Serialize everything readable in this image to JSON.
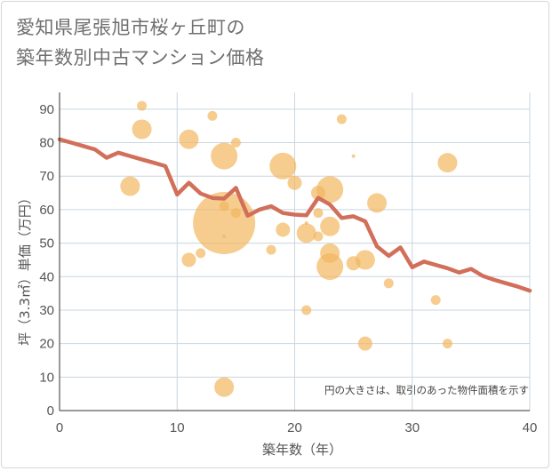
{
  "title_line1": "愛知県尾張旭市桜ヶ丘町の",
  "title_line2": "築年数別中古マンション価格",
  "chart_data": {
    "type": "scatter",
    "xlabel": "築年数（年）",
    "ylabel": "坪（3.3㎡）単価（万円）",
    "note": "円の大きさは、取引のあった物件面積を示す",
    "xlim": [
      0,
      40
    ],
    "ylim": [
      0,
      95
    ],
    "xticks": [
      0,
      10,
      20,
      30,
      40
    ],
    "yticks": [
      0,
      10,
      20,
      30,
      40,
      50,
      60,
      70,
      80,
      90
    ],
    "grid": true,
    "colors": {
      "bubble": "#f2b660",
      "line": "#d26f5a",
      "grid": "#c9d6df"
    },
    "bubbles": [
      {
        "x": 7,
        "y": 91,
        "r": 5.5
      },
      {
        "x": 13,
        "y": 88,
        "r": 5.5
      },
      {
        "x": 24,
        "y": 87,
        "r": 5.5
      },
      {
        "x": 7,
        "y": 84,
        "r": 11
      },
      {
        "x": 11,
        "y": 81,
        "r": 11
      },
      {
        "x": 15,
        "y": 80,
        "r": 5.5
      },
      {
        "x": 14,
        "y": 76,
        "r": 15
      },
      {
        "x": 25,
        "y": 76,
        "r": 2
      },
      {
        "x": 33,
        "y": 74,
        "r": 11
      },
      {
        "x": 19,
        "y": 73,
        "r": 15
      },
      {
        "x": 20,
        "y": 68,
        "r": 8
      },
      {
        "x": 6,
        "y": 67,
        "r": 11
      },
      {
        "x": 23,
        "y": 66,
        "r": 15
      },
      {
        "x": 22,
        "y": 65,
        "r": 8
      },
      {
        "x": 27,
        "y": 62,
        "r": 11
      },
      {
        "x": 14,
        "y": 61,
        "r": 5.5
      },
      {
        "x": 15,
        "y": 59,
        "r": 5.5
      },
      {
        "x": 22,
        "y": 59,
        "r": 5.5
      },
      {
        "x": 21,
        "y": 56,
        "r": 2
      },
      {
        "x": 14,
        "y": 56,
        "r": 35
      },
      {
        "x": 23,
        "y": 55,
        "r": 11
      },
      {
        "x": 19,
        "y": 54,
        "r": 8
      },
      {
        "x": 21,
        "y": 53,
        "r": 11
      },
      {
        "x": 22,
        "y": 52,
        "r": 5.5
      },
      {
        "x": 14,
        "y": 52,
        "r": 2
      },
      {
        "x": 18,
        "y": 48,
        "r": 5.5
      },
      {
        "x": 23,
        "y": 47,
        "r": 11
      },
      {
        "x": 12,
        "y": 47,
        "r": 5.5
      },
      {
        "x": 11,
        "y": 45,
        "r": 8
      },
      {
        "x": 26,
        "y": 45,
        "r": 11
      },
      {
        "x": 25,
        "y": 44,
        "r": 8
      },
      {
        "x": 23,
        "y": 43,
        "r": 15
      },
      {
        "x": 28,
        "y": 38,
        "r": 5.5
      },
      {
        "x": 32,
        "y": 33,
        "r": 5.5
      },
      {
        "x": 21,
        "y": 30,
        "r": 5.5
      },
      {
        "x": 26,
        "y": 20,
        "r": 8
      },
      {
        "x": 33,
        "y": 20,
        "r": 5.5
      },
      {
        "x": 14,
        "y": 7,
        "r": 11
      }
    ],
    "line": {
      "x": [
        0,
        1,
        2,
        3,
        4,
        5,
        6,
        7,
        8,
        9,
        10,
        11,
        12,
        13,
        14,
        15,
        16,
        17,
        18,
        19,
        20,
        21,
        22,
        23,
        24,
        25,
        26,
        27,
        28,
        29,
        30,
        31,
        32,
        33,
        34,
        35,
        36,
        37,
        38,
        39,
        40
      ],
      "y": [
        81,
        80,
        79,
        78,
        75.5,
        77,
        76,
        75,
        74,
        73,
        64.5,
        68,
        64.8,
        63.5,
        63.3,
        66.5,
        58.2,
        60,
        61,
        59,
        58.5,
        58.3,
        63.5,
        61.5,
        57.5,
        58,
        56.5,
        49,
        46.2,
        48.7,
        42.8,
        44.5,
        43.5,
        42.5,
        41.2,
        42.3,
        40.2,
        39,
        38,
        37,
        35.8
      ]
    }
  }
}
